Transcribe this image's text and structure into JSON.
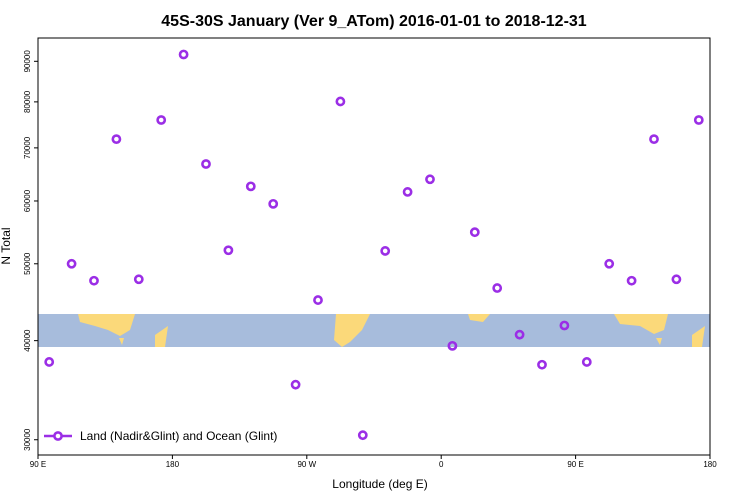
{
  "chart_data": {
    "type": "scatter",
    "title": "45S-30S January (Ver 9_ATom)   2016-01-01 to 2018-12-31",
    "xlabel": "Longitude (deg E)",
    "ylabel": "N Total",
    "xlim": [
      90,
      540
    ],
    "xticks": [
      {
        "value": 90,
        "label": "90 E"
      },
      180,
      {
        "value": 270,
        "label": "90 W"
      },
      {
        "value": 360,
        "label": "0"
      },
      {
        "value": 450,
        "label": "90 E"
      },
      {
        "value": 540,
        "label": "180"
      }
    ],
    "ylim": [
      28700,
      96300
    ],
    "ylog": true,
    "yticks": [
      30000,
      40000,
      50000,
      60000,
      70000,
      80000,
      90000
    ],
    "legend": "bottom-left",
    "series": [
      {
        "name": "Land (Nadir&Glint) and Ocean (Glint)",
        "color": "#9b2ee6",
        "x": [
          97.5,
          112.5,
          127.5,
          142.5,
          157.5,
          172.5,
          187.5,
          202.5,
          217.5,
          232.5,
          247.5,
          262.5,
          277.5,
          292.5,
          307.5,
          322.5,
          337.5,
          352.5,
          367.5,
          382.5,
          397.5,
          412.5,
          427.5,
          442.5,
          457.5,
          472.5,
          487.5,
          502.5,
          517.5,
          532.5
        ],
        "values": [
          37600,
          50000,
          47600,
          71800,
          47800,
          75900,
          91800,
          66800,
          52000,
          62600,
          59500,
          35200,
          45000,
          80100,
          30400,
          51900,
          61600,
          63900,
          39400,
          54800,
          46600,
          40700,
          37300,
          41800,
          37600,
          50000,
          47600,
          71800,
          47800,
          75900
        ]
      }
    ]
  }
}
